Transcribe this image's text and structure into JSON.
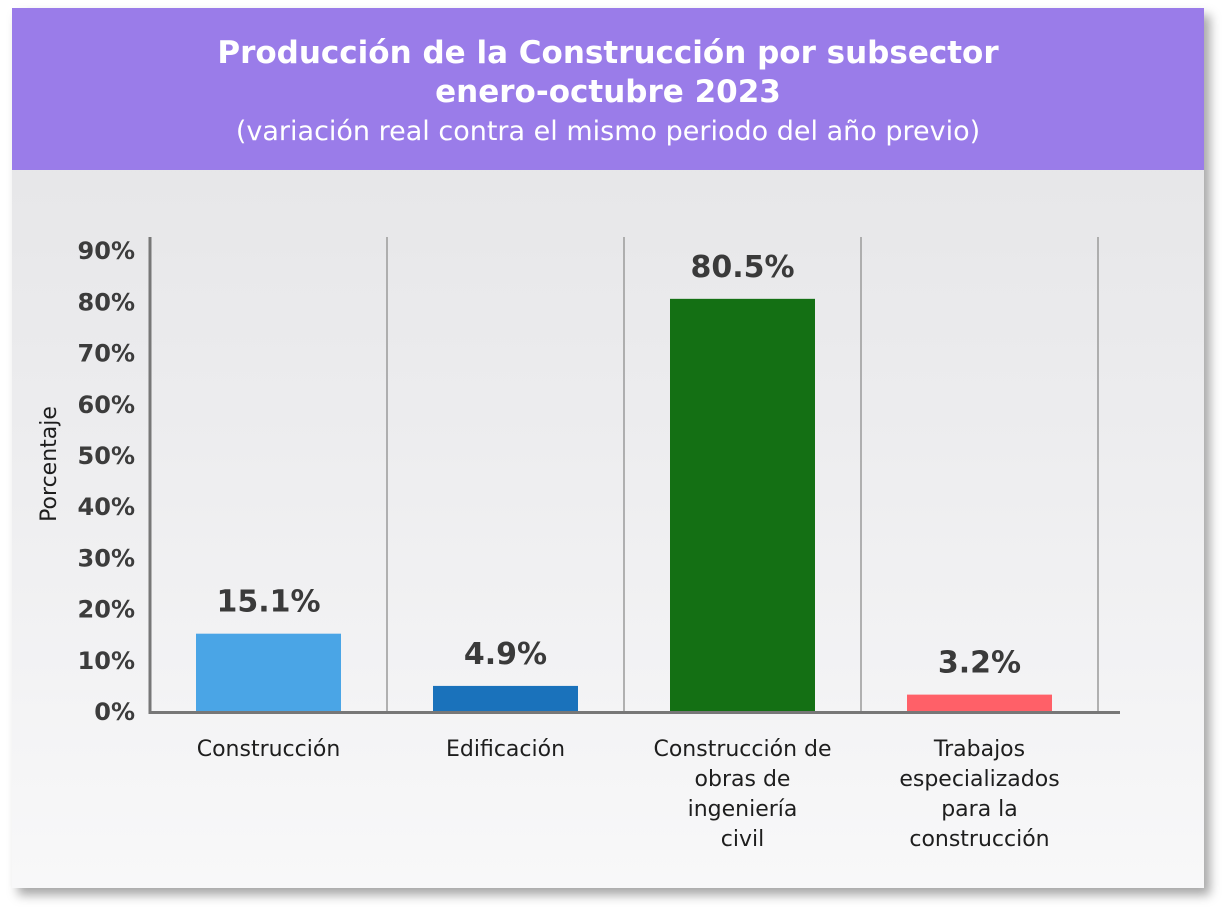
{
  "header": {
    "title_line1": "Producción de la Construcción por subsector",
    "title_line2": "enero-octubre 2023",
    "subtitle": "(variación real contra el mismo periodo del año previo)"
  },
  "colors": {
    "header_bg": "#9a7ce9",
    "axis": "#777777",
    "divider": "#9a9a9a"
  },
  "chart_data": {
    "type": "bar",
    "title": "Producción de la Construcción por subsector enero-octubre 2023",
    "subtitle": "(variación real contra el mismo periodo del año previo)",
    "ylabel": "Porcentaje",
    "xlabel": "",
    "ylim": [
      0,
      90
    ],
    "yticks": [
      0,
      10,
      20,
      30,
      40,
      50,
      60,
      70,
      80,
      90
    ],
    "ytick_labels": [
      "0%",
      "10%",
      "20%",
      "30%",
      "40%",
      "50%",
      "60%",
      "70%",
      "80%",
      "90%"
    ],
    "grid": false,
    "categories": [
      [
        "Construcción"
      ],
      [
        "Edificación"
      ],
      [
        "Construcción de",
        "obras de",
        "ingeniería",
        "civil"
      ],
      [
        "Trabajos",
        "especializados",
        "para la",
        "construcción"
      ]
    ],
    "values": [
      15.1,
      4.9,
      80.5,
      3.2
    ],
    "value_labels": [
      "15.1%",
      "4.9%",
      "80.5%",
      "3.2%"
    ],
    "bar_colors": [
      "#4aa5e6",
      "#1a72bb",
      "#147014",
      "#ff6068"
    ]
  }
}
